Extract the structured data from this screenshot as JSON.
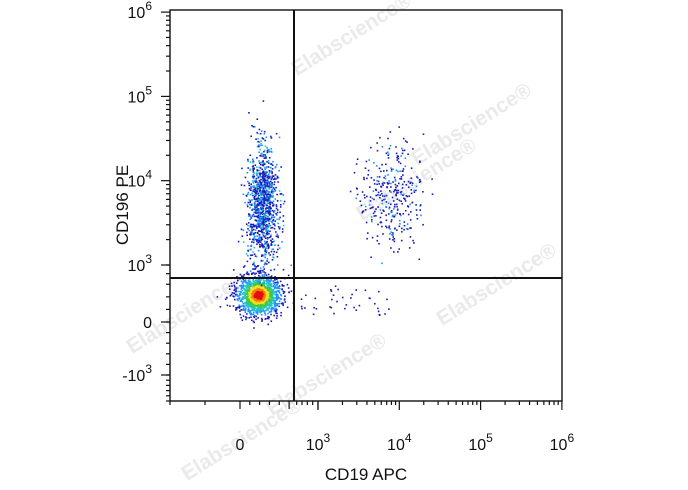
{
  "chart_data": {
    "type": "scatter",
    "xlabel": "CD19 APC",
    "ylabel": "CD196 PE",
    "x_scale": "biexponential",
    "y_scale": "biexponential",
    "xlim": [
      -200,
      1000000
    ],
    "ylim": [
      -2000,
      2000000
    ],
    "x_ticks": [
      {
        "base": "0",
        "exp": "",
        "value": 0
      },
      {
        "base": "10",
        "exp": "3",
        "value": 1000
      },
      {
        "base": "10",
        "exp": "4",
        "value": 10000
      },
      {
        "base": "10",
        "exp": "5",
        "value": 100000
      },
      {
        "base": "10",
        "exp": "6",
        "value": 1000000
      }
    ],
    "y_ticks": [
      {
        "base": "-10",
        "exp": "3",
        "value": -1000
      },
      {
        "base": "0",
        "exp": "",
        "value": 0
      },
      {
        "base": "10",
        "exp": "3",
        "value": 1000
      },
      {
        "base": "10",
        "exp": "4",
        "value": 10000
      },
      {
        "base": "10",
        "exp": "5",
        "value": 100000
      },
      {
        "base": "10",
        "exp": "6",
        "value": 1000000
      }
    ],
    "gates": {
      "x_divider": 550,
      "y_divider": 700
    },
    "populations": [
      {
        "label": "CD19- CD196- dense core",
        "x_center": 40,
        "y_center": 40,
        "x_spread": 15,
        "y_spread": 12,
        "count": 1400,
        "density": "high"
      },
      {
        "label": "CD19- CD196+ streak",
        "x_center": 60,
        "y_center": 5000,
        "x_spread": 15,
        "y_spread": 0.35,
        "count": 1100,
        "density": "medium"
      },
      {
        "label": "CD19+ CD196+ cluster",
        "x_center": 8000,
        "y_center": 7000,
        "x_spread": 0.2,
        "y_spread": 0.3,
        "count": 330,
        "density": "low"
      }
    ],
    "colormap": [
      "#1a1ab8",
      "#1e90ff",
      "#22c5c5",
      "#3ec83e",
      "#f0e020",
      "#ff7a00",
      "#e01010"
    ],
    "grid": false,
    "legend": "none"
  },
  "watermark": "Elabscience®"
}
